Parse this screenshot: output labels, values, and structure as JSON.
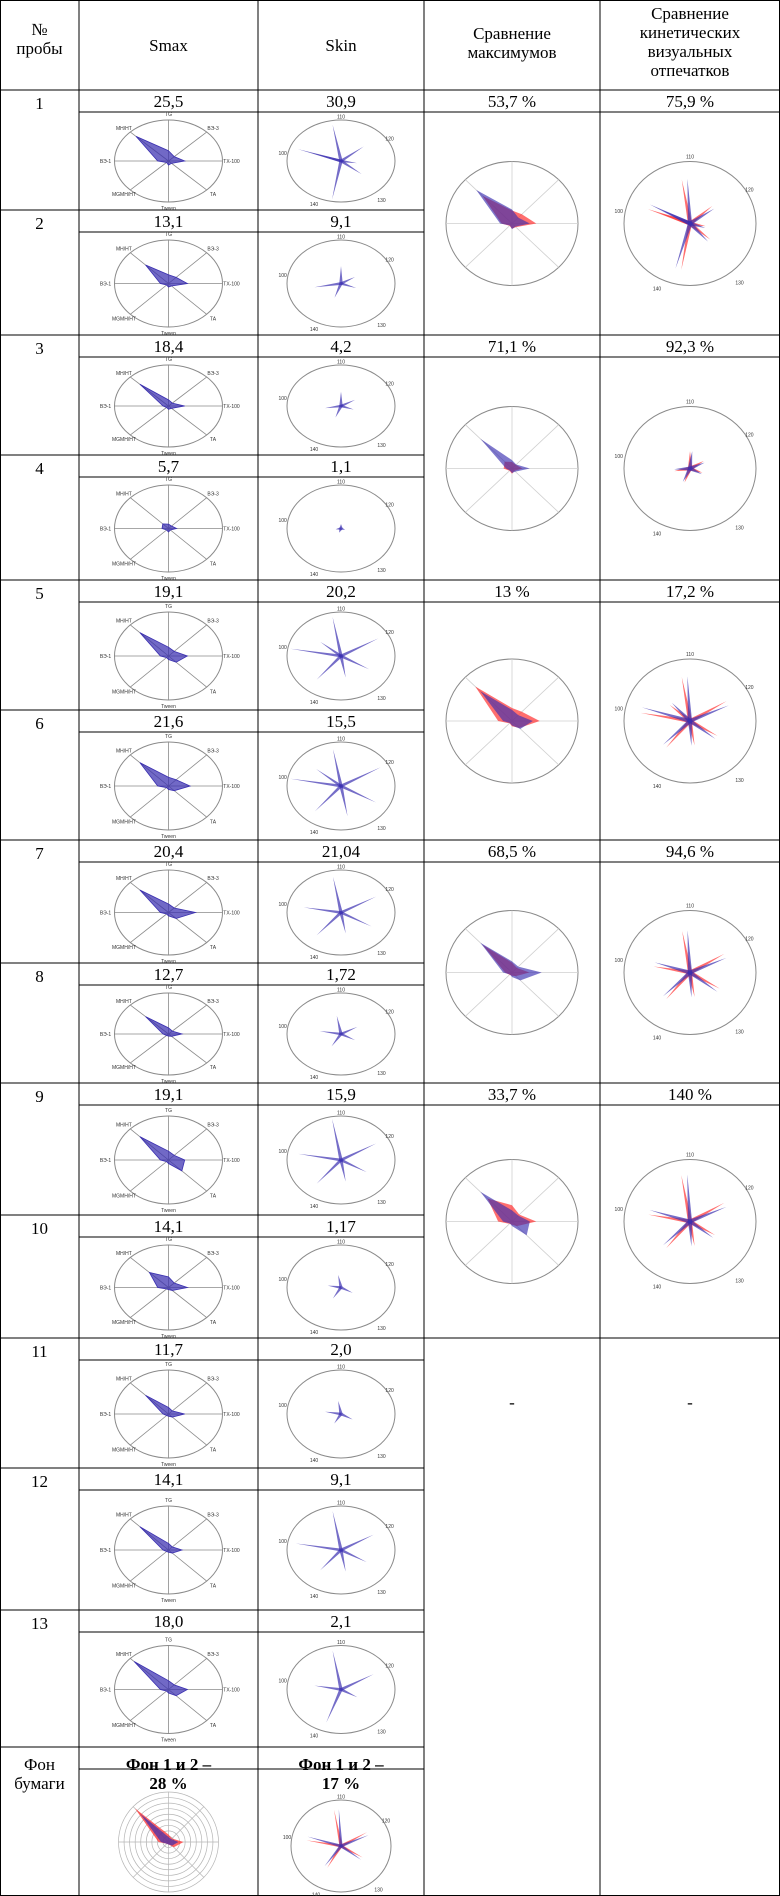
{
  "header": {
    "num": "№\nпробы",
    "smax": "Smax",
    "skin": "Skin",
    "cmp_max": "Сравнение\nмаксимумов",
    "cmp_kin": "Сравнение\nкинетических\nвизуальных\nотпечатков"
  },
  "radar_axes": {
    "top": "TG",
    "top_right": "ВЭ-3",
    "right": "ТХ-100",
    "bottom_right": "ТА",
    "bottom": "Tween",
    "bottom_left": "MGMH/HT",
    "left": "ВЭ-1",
    "top_left": "MH/HT"
  },
  "kin_ticks": [
    "110",
    "120",
    "130",
    "140",
    "100"
  ],
  "rows": [
    {
      "num": "1",
      "smax": "25,5",
      "skin": "30,9"
    },
    {
      "num": "2",
      "smax": "13,1",
      "skin": "9,1"
    },
    {
      "num": "3",
      "smax": "18,4",
      "skin": "4,2"
    },
    {
      "num": "4",
      "smax": "5,7",
      "skin": "1,1"
    },
    {
      "num": "5",
      "smax": "19,1",
      "skin": "20,2"
    },
    {
      "num": "6",
      "smax": "21,6",
      "skin": "15,5"
    },
    {
      "num": "7",
      "smax": "20,4",
      "skin": "21,04"
    },
    {
      "num": "8",
      "smax": "12,7",
      "skin": "1,72"
    },
    {
      "num": "9",
      "smax": "19,1",
      "skin": "15,9"
    },
    {
      "num": "10",
      "smax": "14,1",
      "skin": "1,17"
    },
    {
      "num": "11",
      "smax": "11,7",
      "skin": "2,0"
    },
    {
      "num": "12",
      "smax": "14,1",
      "skin": "9,1"
    },
    {
      "num": "13",
      "smax": "18,0",
      "skin": "2,1"
    }
  ],
  "pairs": [
    {
      "cmp_max": "53,7 %",
      "cmp_kin": "75,9 %"
    },
    {
      "cmp_max": "71,1 %",
      "cmp_kin": "92,3 %"
    },
    {
      "cmp_max": "13 %",
      "cmp_kin": "17,2 %"
    },
    {
      "cmp_max": "68,5 %",
      "cmp_kin": "94,6 %"
    },
    {
      "cmp_max": "33,7 %",
      "cmp_kin": "140 %"
    }
  ],
  "dash": "-",
  "background": {
    "num": "Фон\nбумаги",
    "smax": "Фон 1 и 2 –\n28 %",
    "skin": "Фон 1 и 2 –\n17 %"
  },
  "colors": {
    "blue": "#3a2fb0",
    "red": "#ff3030",
    "grid": "#8a8a8a"
  }
}
